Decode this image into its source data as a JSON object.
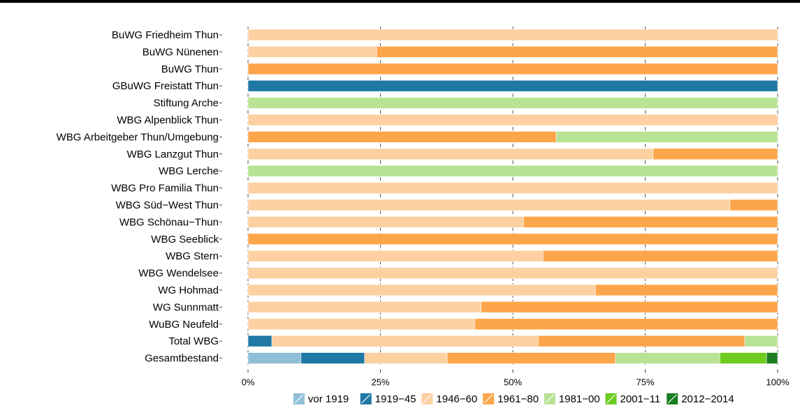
{
  "chart_data": {
    "type": "bar",
    "orientation": "horizontal",
    "stacked": true,
    "normalized": true,
    "categories": [
      "BuWG Friedheim Thun",
      "BuWG Nünenen",
      "BuWG Thun",
      "GBuWG Freistatt Thun",
      "Stiftung Arche",
      "WBG Alpenblick Thun",
      "WBG Arbeitgeber Thun/Umgebung",
      "WBG Lanzgut Thun",
      "WBG Lerche",
      "WBG Pro Familia Thun",
      "WBG Süd−West Thun",
      "WBG Schönau−Thun",
      "WBG Seeblick",
      "WBG Stern",
      "WBG Wendelsee",
      "WG Hohmad",
      "WG Sunnmatt",
      "WuBG Neufeld",
      "Total WBG",
      "Gesamtbestand"
    ],
    "series": [
      {
        "name": "vor 1919",
        "color": "#8fbfd6",
        "values": [
          0,
          0,
          0,
          0,
          0,
          0,
          0,
          0,
          0,
          0,
          0,
          0,
          0,
          0,
          0,
          0,
          0,
          0,
          0,
          10
        ]
      },
      {
        "name": "1919−45",
        "color": "#1f78a4",
        "values": [
          0,
          0,
          0,
          100,
          0,
          0,
          0,
          0,
          0,
          0,
          0,
          0,
          0,
          0,
          0,
          0,
          0,
          0,
          4.5,
          12
        ]
      },
      {
        "name": "1946−60",
        "color": "#fdd0a2",
        "values": [
          100,
          24.3,
          0,
          0,
          0,
          100,
          0,
          76.5,
          0,
          100,
          91,
          52,
          0,
          55.7,
          100,
          65.6,
          44,
          42.8,
          50.3,
          15.6
        ]
      },
      {
        "name": "1961−80",
        "color": "#fda54a",
        "values": [
          0,
          75.7,
          100,
          0,
          0,
          0,
          58.2,
          23.5,
          0,
          0,
          9,
          48,
          100,
          44.3,
          0,
          34.4,
          56,
          57.2,
          39,
          31.8
        ]
      },
      {
        "name": "1981−00",
        "color": "#b8e394",
        "values": [
          0,
          0,
          0,
          0,
          100,
          0,
          41.8,
          0,
          100,
          0,
          0,
          0,
          0,
          0,
          0,
          0,
          0,
          0,
          6.2,
          19.7
        ]
      },
      {
        "name": "2001−11",
        "color": "#6dcc1d",
        "values": [
          0,
          0,
          0,
          0,
          0,
          0,
          0,
          0,
          0,
          0,
          0,
          0,
          0,
          0,
          0,
          0,
          0,
          0,
          0,
          8.8
        ]
      },
      {
        "name": "2012−2014",
        "color": "#1b7d1f",
        "values": [
          0,
          0,
          0,
          0,
          0,
          0,
          0,
          0,
          0,
          0,
          0,
          0,
          0,
          0,
          0,
          0,
          0,
          0,
          0,
          2.1
        ]
      }
    ],
    "xlim": [
      0,
      100
    ],
    "xticks": [
      0,
      25,
      50,
      75,
      100
    ],
    "xtick_labels": [
      "0%",
      "25%",
      "50%",
      "75%",
      "100%"
    ],
    "grid": "vertical dashed lines at major ticks",
    "legend_position": "bottom",
    "title": "",
    "xlabel": "",
    "ylabel": ""
  }
}
